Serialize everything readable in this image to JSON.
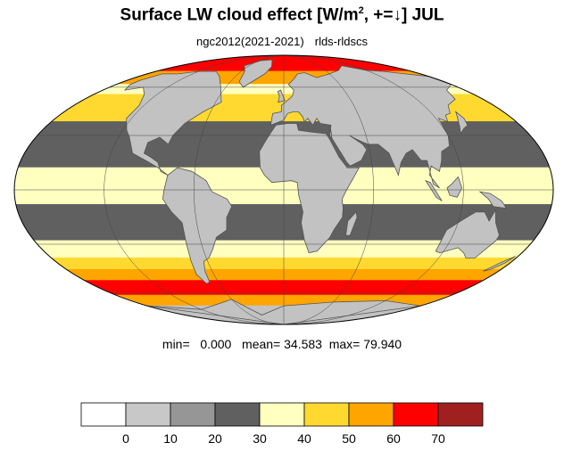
{
  "title": {
    "prefix": "Surface LW cloud effect [W/m",
    "sup": "2",
    "suffix": ", +=↓]  JUL"
  },
  "subtitle": {
    "left": "ngc2012(2021-2021)",
    "right": "rlds-rldscs"
  },
  "stats": {
    "min_label": "min=",
    "min_value": "0.000",
    "mean_label": "mean=",
    "mean_value": "34.583",
    "max_label": "max=",
    "max_value": "79.940"
  },
  "colors": {
    "land": "#c2c2c2",
    "coast": "#555555",
    "grid": "#444444",
    "outline": "#000000"
  },
  "map": {
    "projection": "Mollweide",
    "bands": [
      {
        "lat_top": 90,
        "lat_bot": 72,
        "color": "#ff0000"
      },
      {
        "lat_top": 72,
        "lat_bot": 62,
        "color": "#ffa500"
      },
      {
        "lat_top": 62,
        "lat_bot": 55,
        "color": "#ffffc0"
      },
      {
        "lat_top": 55,
        "lat_bot": 38,
        "color": "#ffd930"
      },
      {
        "lat_top": 38,
        "lat_bot": 22,
        "color": "#606060"
      },
      {
        "lat_top": 22,
        "lat_bot": 12,
        "color": "#606060"
      },
      {
        "lat_top": 12,
        "lat_bot": -8,
        "color": "#ffffc0"
      },
      {
        "lat_top": -8,
        "lat_bot": -28,
        "color": "#606060"
      },
      {
        "lat_top": -28,
        "lat_bot": -38,
        "color": "#ffffc0"
      },
      {
        "lat_top": -38,
        "lat_bot": -45,
        "color": "#ffd930"
      },
      {
        "lat_top": -45,
        "lat_bot": -52,
        "color": "#ffa500"
      },
      {
        "lat_top": -52,
        "lat_bot": -62,
        "color": "#ff0000"
      },
      {
        "lat_top": -62,
        "lat_bot": -70,
        "color": "#ffa500"
      },
      {
        "lat_top": -70,
        "lat_bot": -90,
        "color": "#c2c2c2"
      }
    ],
    "continents": [
      {
        "name": "north-america",
        "pts": [
          [
            -165,
            65
          ],
          [
            -160,
            70
          ],
          [
            -140,
            70
          ],
          [
            -120,
            72
          ],
          [
            -95,
            72
          ],
          [
            -80,
            68
          ],
          [
            -65,
            60
          ],
          [
            -55,
            50
          ],
          [
            -66,
            44
          ],
          [
            -76,
            37
          ],
          [
            -81,
            30
          ],
          [
            -82,
            25
          ],
          [
            -90,
            29
          ],
          [
            -97,
            26
          ],
          [
            -97,
            20
          ],
          [
            -92,
            18
          ],
          [
            -86,
            15
          ],
          [
            -83,
            10
          ],
          [
            -78,
            8
          ],
          [
            -85,
            12
          ],
          [
            -92,
            15
          ],
          [
            -105,
            20
          ],
          [
            -112,
            29
          ],
          [
            -117,
            33
          ],
          [
            -124,
            40
          ],
          [
            -124,
            48
          ],
          [
            -132,
            55
          ],
          [
            -145,
            60
          ],
          [
            -158,
            58
          ],
          [
            -165,
            62
          ]
        ]
      },
      {
        "name": "greenland",
        "pts": [
          [
            -55,
            82
          ],
          [
            -30,
            83
          ],
          [
            -20,
            76
          ],
          [
            -25,
            70
          ],
          [
            -42,
            60
          ],
          [
            -50,
            64
          ],
          [
            -55,
            72
          ],
          [
            -68,
            77
          ]
        ]
      },
      {
        "name": "south-america",
        "pts": [
          [
            -78,
            8
          ],
          [
            -72,
            12
          ],
          [
            -62,
            10
          ],
          [
            -52,
            5
          ],
          [
            -48,
            -1
          ],
          [
            -38,
            -5
          ],
          [
            -35,
            -9
          ],
          [
            -39,
            -15
          ],
          [
            -40,
            -22
          ],
          [
            -48,
            -26
          ],
          [
            -53,
            -33
          ],
          [
            -58,
            -38
          ],
          [
            -63,
            -40
          ],
          [
            -66,
            -46
          ],
          [
            -68,
            -53
          ],
          [
            -72,
            -54
          ],
          [
            -75,
            -48
          ],
          [
            -73,
            -40
          ],
          [
            -71,
            -30
          ],
          [
            -70,
            -18
          ],
          [
            -76,
            -12
          ],
          [
            -81,
            -5
          ],
          [
            -80,
            0
          ]
        ]
      },
      {
        "name": "eurasia",
        "pts": [
          [
            -10,
            36
          ],
          [
            -9,
            43
          ],
          [
            -2,
            44
          ],
          [
            -2,
            48
          ],
          [
            3,
            51
          ],
          [
            8,
            54
          ],
          [
            10,
            58
          ],
          [
            5,
            62
          ],
          [
            12,
            66
          ],
          [
            18,
            70
          ],
          [
            28,
            71
          ],
          [
            40,
            67
          ],
          [
            60,
            70
          ],
          [
            80,
            73
          ],
          [
            100,
            77
          ],
          [
            120,
            73
          ],
          [
            140,
            72
          ],
          [
            160,
            70
          ],
          [
            180,
            68
          ],
          [
            180,
            62
          ],
          [
            162,
            58
          ],
          [
            155,
            52
          ],
          [
            141,
            48
          ],
          [
            135,
            43
          ],
          [
            130,
            42
          ],
          [
            127,
            38
          ],
          [
            122,
            40
          ],
          [
            120,
            30
          ],
          [
            117,
            24
          ],
          [
            110,
            21
          ],
          [
            108,
            16
          ],
          [
            105,
            10
          ],
          [
            100,
            13
          ],
          [
            98,
            8
          ],
          [
            104,
            1
          ],
          [
            100,
            3
          ],
          [
            98,
            16
          ],
          [
            94,
            16
          ],
          [
            90,
            22
          ],
          [
            85,
            20
          ],
          [
            80,
            15
          ],
          [
            77,
            8
          ],
          [
            73,
            20
          ],
          [
            67,
            25
          ],
          [
            60,
            25
          ],
          [
            57,
            26
          ],
          [
            52,
            28
          ],
          [
            48,
            30
          ],
          [
            56,
            25
          ],
          [
            58,
            22
          ],
          [
            53,
            16
          ],
          [
            45,
            13
          ],
          [
            43,
            15
          ],
          [
            35,
            28
          ],
          [
            34,
            32
          ],
          [
            36,
            36
          ],
          [
            28,
            37
          ],
          [
            26,
            40
          ],
          [
            22,
            36
          ],
          [
            19,
            40
          ],
          [
            16,
            38
          ],
          [
            15,
            41
          ],
          [
            12,
            44
          ],
          [
            8,
            44
          ],
          [
            3,
            43
          ],
          [
            0,
            39
          ]
        ]
      },
      {
        "name": "africa",
        "pts": [
          [
            -17,
            21
          ],
          [
            -16,
            12
          ],
          [
            -13,
            8
          ],
          [
            -8,
            4
          ],
          [
            5,
            5
          ],
          [
            9,
            4
          ],
          [
            10,
            -3
          ],
          [
            13,
            -12
          ],
          [
            12,
            -18
          ],
          [
            15,
            -28
          ],
          [
            19,
            -35
          ],
          [
            25,
            -34
          ],
          [
            33,
            -26
          ],
          [
            35,
            -22
          ],
          [
            40,
            -15
          ],
          [
            40,
            -10
          ],
          [
            39,
            -5
          ],
          [
            42,
            0
          ],
          [
            51,
            12
          ],
          [
            43,
            12
          ],
          [
            38,
            18
          ],
          [
            33,
            28
          ],
          [
            31,
            31
          ],
          [
            20,
            32
          ],
          [
            11,
            33
          ],
          [
            10,
            37
          ],
          [
            3,
            37
          ],
          [
            -6,
            36
          ],
          [
            -10,
            31
          ],
          [
            -13,
            27
          ]
        ]
      },
      {
        "name": "arabia-bridge",
        "pts": [
          [
            33,
            28
          ],
          [
            35,
            30
          ],
          [
            35,
            34
          ]
        ]
      },
      {
        "name": "madagascar",
        "pts": [
          [
            44,
            -25
          ],
          [
            47,
            -25
          ],
          [
            50,
            -15
          ],
          [
            49,
            -12
          ],
          [
            44,
            -17
          ]
        ]
      },
      {
        "name": "australia",
        "pts": [
          [
            114,
            -22
          ],
          [
            114,
            -34
          ],
          [
            118,
            -35
          ],
          [
            129,
            -32
          ],
          [
            136,
            -35
          ],
          [
            141,
            -38
          ],
          [
            148,
            -38
          ],
          [
            153,
            -28
          ],
          [
            153,
            -25
          ],
          [
            146,
            -18
          ],
          [
            143,
            -11
          ],
          [
            141,
            -17
          ],
          [
            136,
            -12
          ],
          [
            130,
            -12
          ],
          [
            123,
            -16
          ]
        ]
      },
      {
        "name": "borneo",
        "pts": [
          [
            109,
            1
          ],
          [
            111,
            -3
          ],
          [
            116,
            -4
          ],
          [
            119,
            1
          ],
          [
            117,
            7
          ],
          [
            112,
            3
          ]
        ]
      },
      {
        "name": "sumatra",
        "pts": [
          [
            95,
            5
          ],
          [
            98,
            4
          ],
          [
            106,
            -6
          ],
          [
            102,
            -4
          ]
        ]
      },
      {
        "name": "new-guinea",
        "pts": [
          [
            131,
            -1
          ],
          [
            138,
            -2
          ],
          [
            146,
            -6
          ],
          [
            150,
            -10
          ],
          [
            141,
            -9
          ],
          [
            137,
            -5
          ]
        ]
      },
      {
        "name": "japan",
        "pts": [
          [
            130,
            31
          ],
          [
            135,
            34
          ],
          [
            140,
            36
          ],
          [
            142,
            40
          ],
          [
            141,
            44
          ],
          [
            139,
            42
          ],
          [
            133,
            35
          ]
        ]
      },
      {
        "name": "uk",
        "pts": [
          [
            -5,
            50
          ],
          [
            1,
            51
          ],
          [
            -2,
            56
          ],
          [
            -3,
            58
          ],
          [
            -6,
            57
          ],
          [
            -4,
            54
          ]
        ]
      },
      {
        "name": "new-zealand",
        "pts": [
          [
            167,
            -46
          ],
          [
            172,
            -41
          ],
          [
            178,
            -37
          ],
          [
            176,
            -41
          ],
          [
            171,
            -45
          ]
        ]
      },
      {
        "name": "antarctica",
        "pts": [
          [
            -180,
            -70
          ],
          [
            -120,
            -73
          ],
          [
            -60,
            -65
          ],
          [
            -40,
            -78
          ],
          [
            0,
            -70
          ],
          [
            60,
            -67
          ],
          [
            120,
            -66
          ],
          [
            180,
            -70
          ],
          [
            180,
            -90
          ],
          [
            -180,
            -90
          ]
        ]
      }
    ]
  },
  "colorbar": {
    "colors": [
      "#ffffff",
      "#c8c8c8",
      "#969696",
      "#606060",
      "#ffffc0",
      "#ffd930",
      "#ffa500",
      "#ff0000",
      "#a02020"
    ],
    "tick_labels": [
      "0",
      "10",
      "20",
      "30",
      "40",
      "50",
      "60",
      "70"
    ]
  }
}
